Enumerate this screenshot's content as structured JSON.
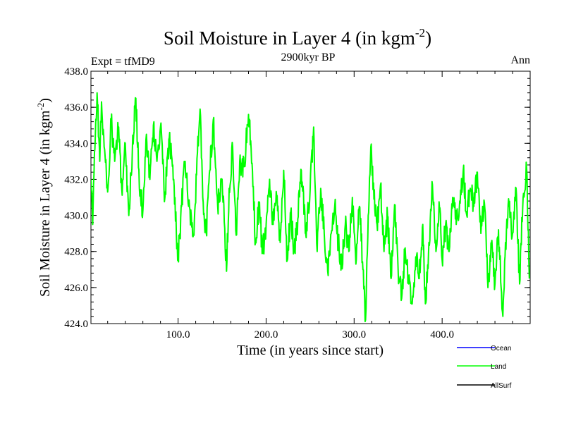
{
  "chart_data": {
    "type": "line",
    "title": "Soil Moisture in Layer 4 (in kgm",
    "title_sup": "-2",
    "title_close": ")",
    "subtitle_left": "Expt = tfMD9",
    "subtitle_center": "2900kyr BP",
    "subtitle_right": "Ann",
    "xlabel": "Time (in years since start)",
    "ylabel": "Soil Moisture in Layer 4 (in kgm",
    "ylabel_sup": "-2",
    "ylabel_close": ")",
    "xlim": [
      1,
      500
    ],
    "ylim": [
      424.0,
      438.0
    ],
    "x_ticks": [
      100,
      200,
      300,
      400
    ],
    "x_tick_labels": [
      "100.0",
      "200.0",
      "300.0",
      "400.0"
    ],
    "y_ticks": [
      424,
      426,
      428,
      430,
      432,
      434,
      436,
      438
    ],
    "y_tick_labels": [
      "424.0",
      "426.0",
      "428.0",
      "430.0",
      "432.0",
      "434.0",
      "436.0",
      "438.0"
    ],
    "colors": {
      "Ocean": "#0000ff",
      "Land": "#00ff00",
      "AllSurf": "#000000"
    },
    "legend": [
      "Ocean",
      "Land",
      "AllSurf"
    ],
    "series": [
      {
        "name": "Land",
        "anchors": [
          [
            1,
            432.0
          ],
          [
            3,
            429.5
          ],
          [
            5,
            433.5
          ],
          [
            8,
            436.8
          ],
          [
            11,
            433.0
          ],
          [
            13,
            436.3
          ],
          [
            16,
            433.8
          ],
          [
            20,
            431.3
          ],
          [
            24,
            435.2
          ],
          [
            28,
            433.0
          ],
          [
            32,
            434.8
          ],
          [
            36,
            431.5
          ],
          [
            40,
            434.0
          ],
          [
            44,
            430.0
          ],
          [
            48,
            433.6
          ],
          [
            52,
            436.5
          ],
          [
            56,
            431.5
          ],
          [
            60,
            430.3
          ],
          [
            64,
            434.5
          ],
          [
            68,
            432.0
          ],
          [
            72,
            435.0
          ],
          [
            76,
            433.0
          ],
          [
            80,
            434.9
          ],
          [
            85,
            431.0
          ],
          [
            90,
            434.3
          ],
          [
            95,
            432.0
          ],
          [
            100,
            427.5
          ],
          [
            104,
            430.5
          ],
          [
            108,
            433.0
          ],
          [
            112,
            430.5
          ],
          [
            118,
            428.9
          ],
          [
            122,
            433.5
          ],
          [
            125,
            435.9
          ],
          [
            128,
            431.0
          ],
          [
            132,
            429.0
          ],
          [
            136,
            432.5
          ],
          [
            140,
            435.3
          ],
          [
            145,
            430.5
          ],
          [
            150,
            432.0
          ],
          [
            155,
            426.9
          ],
          [
            158,
            431.5
          ],
          [
            162,
            433.8
          ],
          [
            166,
            428.9
          ],
          [
            170,
            433.0
          ],
          [
            175,
            432.7
          ],
          [
            180,
            435.6
          ],
          [
            184,
            432.9
          ],
          [
            188,
            428.5
          ],
          [
            192,
            430.7
          ],
          [
            196,
            427.9
          ],
          [
            200,
            429.5
          ],
          [
            204,
            432.0
          ],
          [
            208,
            429.5
          ],
          [
            212,
            431.1
          ],
          [
            216,
            428.5
          ],
          [
            220,
            432.5
          ],
          [
            224,
            427.5
          ],
          [
            228,
            430.2
          ],
          [
            232,
            428.0
          ],
          [
            236,
            429.8
          ],
          [
            240,
            432.5
          ],
          [
            245,
            429.0
          ],
          [
            250,
            431.4
          ],
          [
            254,
            434.9
          ],
          [
            258,
            428.0
          ],
          [
            262,
            431.5
          ],
          [
            266,
            429.0
          ],
          [
            270,
            426.9
          ],
          [
            274,
            429.0
          ],
          [
            278,
            430.5
          ],
          [
            282,
            428.5
          ],
          [
            286,
            427.1
          ],
          [
            290,
            429.5
          ],
          [
            294,
            428.0
          ],
          [
            298,
            431.0
          ],
          [
            302,
            427.3
          ],
          [
            306,
            430.5
          ],
          [
            310,
            427.0
          ],
          [
            313,
            424.2
          ],
          [
            316,
            430.0
          ],
          [
            319,
            433.8
          ],
          [
            322,
            431.8
          ],
          [
            326,
            429.5
          ],
          [
            330,
            431.7
          ],
          [
            334,
            428.0
          ],
          [
            338,
            430.0
          ],
          [
            342,
            426.5
          ],
          [
            346,
            430.6
          ],
          [
            350,
            427.0
          ],
          [
            354,
            425.4
          ],
          [
            358,
            428.2
          ],
          [
            362,
            426.2
          ],
          [
            366,
            425.1
          ],
          [
            370,
            427.7
          ],
          [
            374,
            426.5
          ],
          [
            378,
            429.5
          ],
          [
            381,
            425.1
          ],
          [
            385,
            428.5
          ],
          [
            389,
            431.7
          ],
          [
            393,
            428.0
          ],
          [
            397,
            430.4
          ],
          [
            400,
            427.5
          ],
          [
            404,
            429.5
          ],
          [
            408,
            428.0
          ],
          [
            412,
            431.0
          ],
          [
            416,
            429.5
          ],
          [
            420,
            430.8
          ],
          [
            424,
            432.5
          ],
          [
            428,
            430.0
          ],
          [
            432,
            431.5
          ],
          [
            436,
            430.5
          ],
          [
            440,
            432.4
          ],
          [
            444,
            429.0
          ],
          [
            448,
            430.7
          ],
          [
            452,
            426.0
          ],
          [
            456,
            428.5
          ],
          [
            460,
            426.2
          ],
          [
            464,
            429.2
          ],
          [
            467,
            426.0
          ],
          [
            469,
            424.4
          ],
          [
            472,
            428.5
          ],
          [
            476,
            430.5
          ],
          [
            480,
            429.0
          ],
          [
            484,
            431.5
          ],
          [
            488,
            426.2
          ],
          [
            492,
            431.0
          ],
          [
            496,
            432.6
          ],
          [
            499,
            426.5
          ]
        ]
      }
    ]
  }
}
